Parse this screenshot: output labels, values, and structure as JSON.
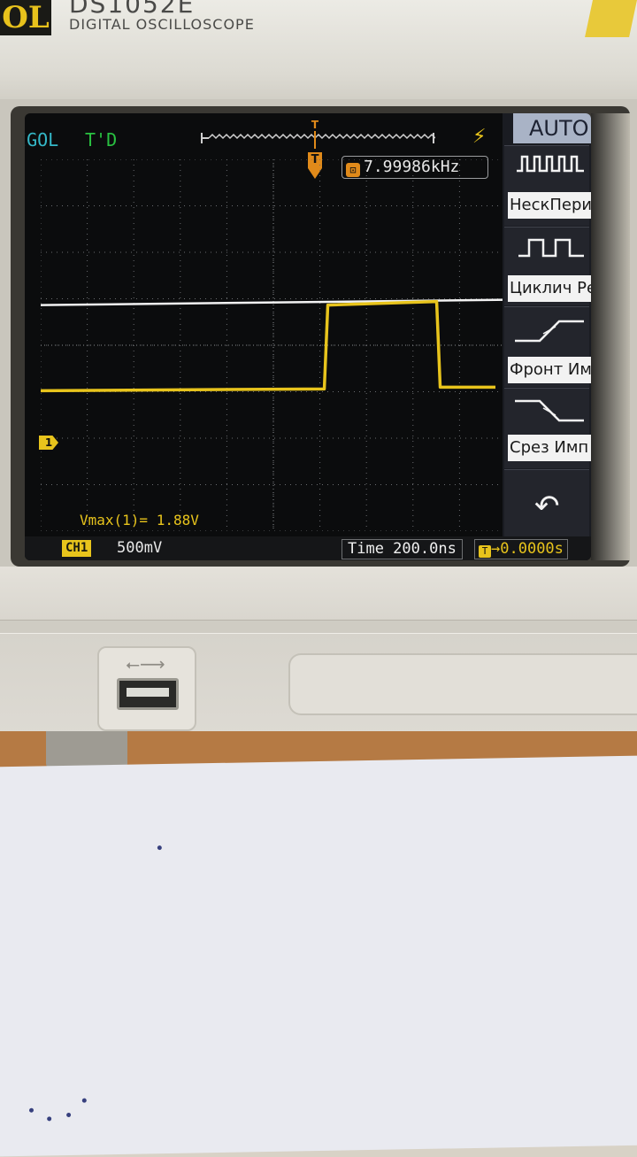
{
  "device": {
    "logo_text": "OL",
    "model": "DS1052E",
    "subtitle": "DIGITAL OSCILLOSCOPE"
  },
  "screen": {
    "brand": "RIGOL",
    "trigger_status": "T'D",
    "trigger_marker": "T",
    "frequency_readout": "7.99986kHz",
    "measurement": "Vmax(1)= 1.88V",
    "channel_label": "CH1",
    "channel_scale": "500mV",
    "timebase": "Time 200.0ns",
    "trigger_offset": "0.0000s",
    "channel_marker": "1",
    "trigger_mode": "AUTO"
  },
  "menu": {
    "items": [
      {
        "label": "НескПериод",
        "icon": "multi-period-waveform-icon"
      },
      {
        "label": "Циклич Реж",
        "icon": "cyclic-mode-waveform-icon"
      },
      {
        "label": "Фронт Имп",
        "icon": "rising-edge-icon"
      },
      {
        "label": "Срез Имп",
        "icon": "falling-edge-icon"
      }
    ],
    "back_icon": "undo-arrow-icon"
  },
  "waveform": {
    "type": "pulse",
    "channel": "CH1",
    "low_level_div": -2.0,
    "high_level_div": 2.0,
    "rise_at_div": 6.4,
    "fall_at_div": 8.85,
    "colors": {
      "trace": "#e8c41c",
      "trigger_level": "#f2f2f2",
      "grid": "#6a6c70"
    }
  },
  "usb": {
    "icon": "usb-icon"
  }
}
